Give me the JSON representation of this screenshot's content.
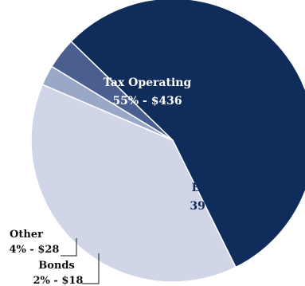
{
  "chart_data": {
    "type": "pie",
    "title": "",
    "slices": [
      {
        "name": "Tax Operating",
        "percent_label": "55% - $436",
        "value": 436,
        "color": "#0f2c5a",
        "label_color": "#ffffff"
      },
      {
        "name": "Enterprise",
        "percent_label": "39% - $305",
        "value": 305,
        "color": "#d0d6e8",
        "label_color": "#0f2c5a"
      },
      {
        "name": "Bonds",
        "percent_label": "2% - $18",
        "value": 18,
        "color": "#9aa8c8",
        "label_color": "#111111"
      },
      {
        "name": "Other",
        "percent_label": "4% - $28",
        "value": 28,
        "color": "#4a5f8f",
        "label_color": "#111111"
      }
    ],
    "legend": "none"
  }
}
